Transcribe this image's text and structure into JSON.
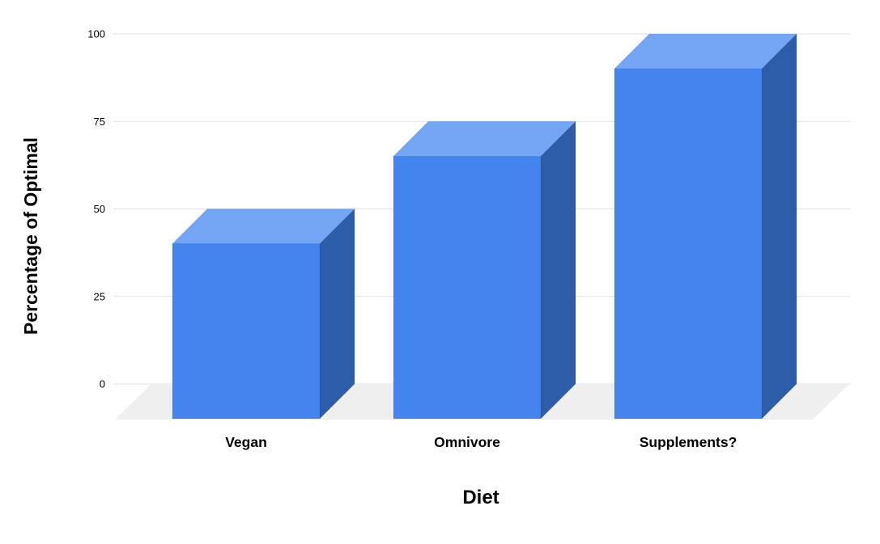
{
  "chart_data": {
    "type": "bar",
    "style": "3d-column",
    "categories": [
      "Vegan",
      "Omnivore",
      "Supplements?"
    ],
    "values": [
      50,
      75,
      100
    ],
    "title": "",
    "xlabel": "Diet",
    "ylabel": "Percentage of Optimal",
    "ylim": [
      0,
      100
    ],
    "yticks": [
      0,
      25,
      50,
      75,
      100
    ],
    "legend": "none",
    "grid": true,
    "colors": {
      "bar_front": "#4484ef",
      "bar_top": "#74a4f4",
      "bar_side": "#2d5da8",
      "floor": "#efefef",
      "gridline": "#e2e2e2",
      "text": "#000000",
      "background": "#ffffff"
    }
  }
}
